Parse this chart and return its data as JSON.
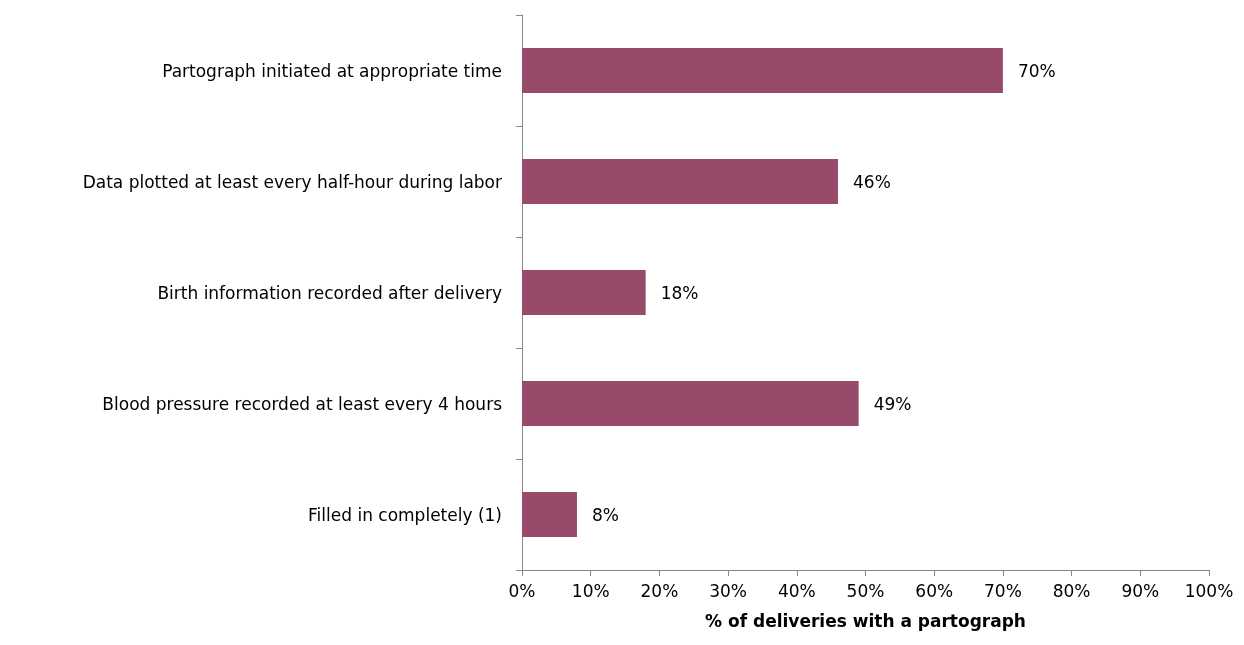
{
  "chart_data": {
    "type": "bar",
    "orientation": "horizontal",
    "xlabel": "% of deliveries with a partograph",
    "categories": [
      "Partograph initiated at appropriate time",
      "Data plotted at least every half-hour during labor",
      "Birth information recorded after delivery",
      "Blood pressure recorded at least every 4 hours",
      "Filled in completely (1)"
    ],
    "values": [
      70,
      46,
      18,
      49,
      8
    ],
    "value_labels": [
      "70%",
      "46%",
      "18%",
      "49%",
      "8%"
    ],
    "color": "#984a6a",
    "xlim": [
      0,
      100
    ],
    "xticks": [
      {
        "value": 0,
        "label": "0%"
      },
      {
        "value": 10,
        "label": "10%"
      },
      {
        "value": 20,
        "label": "20%"
      },
      {
        "value": 30,
        "label": "30%"
      },
      {
        "value": 40,
        "label": "40%"
      },
      {
        "value": 50,
        "label": "50%"
      },
      {
        "value": 60,
        "label": "60%"
      },
      {
        "value": 70,
        "label": "70%"
      },
      {
        "value": 80,
        "label": "80%"
      },
      {
        "value": 90,
        "label": "90%"
      },
      {
        "value": 100,
        "label": "100%"
      }
    ],
    "grid": false
  }
}
